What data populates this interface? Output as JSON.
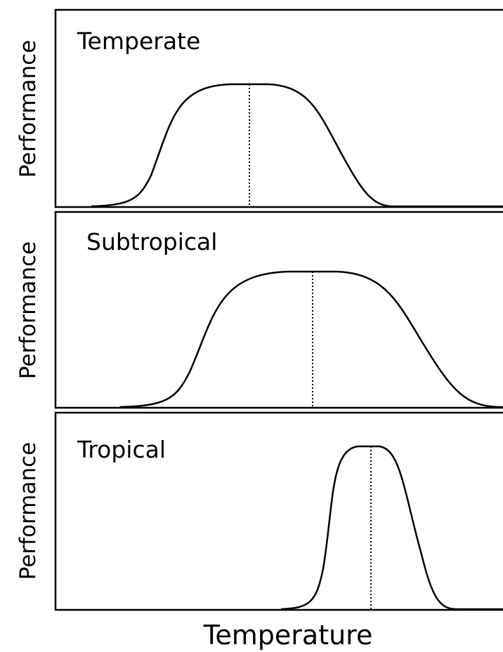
{
  "panels": [
    {
      "title": "Temperate",
      "y_label": "Performance"
    },
    {
      "title": "Subtropical",
      "y_label": "Performance"
    },
    {
      "title": "Tropical",
      "y_label": "Performance"
    }
  ],
  "x_label": "Temperature"
}
